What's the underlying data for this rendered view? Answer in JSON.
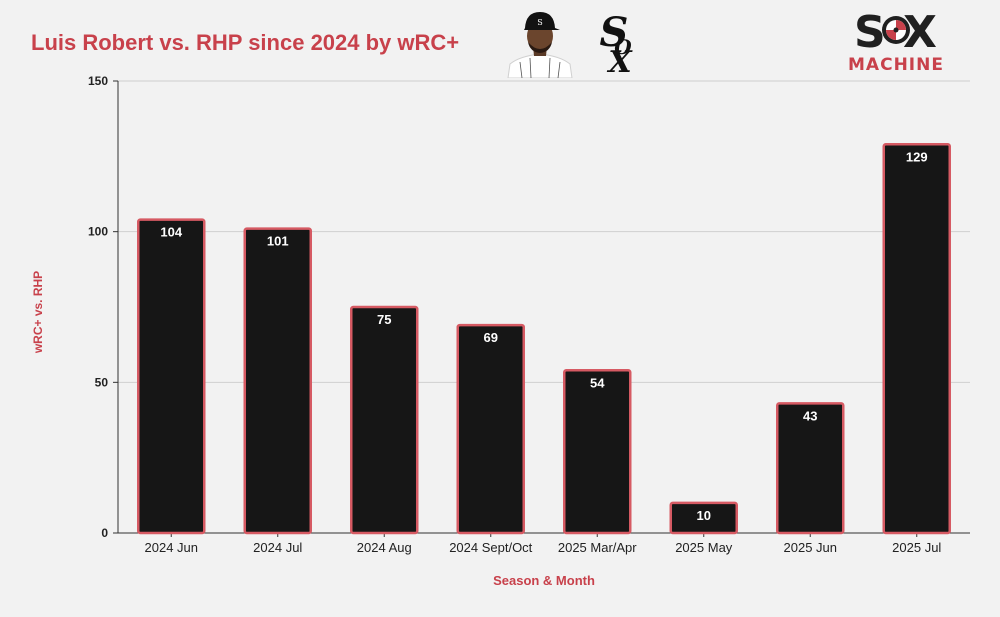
{
  "header": {
    "title": "Luis Robert vs. RHP since 2024 by wRC+",
    "brand_top": "S X",
    "brand_bottom": "MACHINE"
  },
  "colors": {
    "title": "#c8414b",
    "bar_fill": "#161616",
    "bar_stroke": "#d65a63",
    "grid": "#cfcfcf",
    "axis_label": "#c8414b"
  },
  "icons": {
    "player": "player-headshot-icon",
    "team": "white-sox-logo-icon",
    "brand": "sox-machine-logo-icon"
  },
  "chart_data": {
    "type": "bar",
    "title": "Luis Robert vs. RHP since 2024 by wRC+",
    "xlabel": "Season & Month",
    "ylabel": "wRC+ vs. RHP",
    "categories": [
      "2024 Jun",
      "2024 Jul",
      "2024 Aug",
      "2024 Sept/Oct",
      "2025 Mar/Apr",
      "2025 May",
      "2025 Jun",
      "2025 Jul"
    ],
    "values": [
      104,
      101,
      75,
      69,
      54,
      10,
      43,
      129
    ],
    "ylim": [
      0,
      150
    ],
    "yticks": [
      0,
      50,
      100,
      150
    ],
    "grid": true,
    "data_labels": true
  }
}
